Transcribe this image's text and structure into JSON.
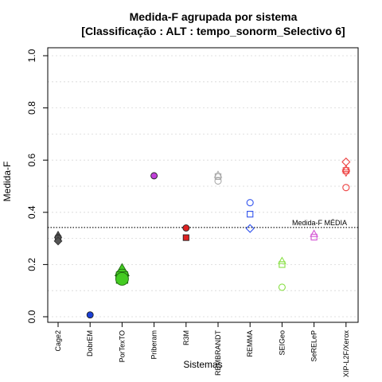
{
  "chart_data": {
    "type": "scatter",
    "title": "Medida-F agrupada por sistema",
    "subtitle": "[Classificação : ALT : tempo_sonorm_Selectivo 6]",
    "xlabel": "Sistemas",
    "ylabel": "Medida-F",
    "ylim": [
      0,
      1
    ],
    "yticks": [
      "0.0",
      "0.2",
      "0.4",
      "0.6",
      "0.8",
      "1.0"
    ],
    "grid": "horizontal-dotted",
    "categories": [
      "Cage2",
      "DobrEM",
      "PorTexTO",
      "Priberam",
      "R3M",
      "REMBRANDT",
      "REMMA",
      "SEIGeo",
      "SeRELeP",
      "XIP-L2F/Xerox"
    ],
    "reference_line": {
      "label": "Medida-F MÉDIA",
      "value": 0.342
    },
    "points": [
      {
        "category": "Cage2",
        "y": 0.313,
        "shape": "triangle",
        "color": "#555555",
        "fill": true,
        "size": 4
      },
      {
        "category": "Cage2",
        "y": 0.303,
        "shape": "circle",
        "color": "#555555",
        "fill": true,
        "size": 4
      },
      {
        "category": "Cage2",
        "y": 0.3,
        "shape": "square",
        "color": "#555555",
        "fill": true,
        "size": 4
      },
      {
        "category": "Cage2",
        "y": 0.29,
        "shape": "diamond",
        "color": "#555555",
        "fill": true,
        "size": 4
      },
      {
        "category": "DobrEM",
        "y": 0.007,
        "shape": "circle",
        "color": "#1a3fd6",
        "fill": true,
        "size": 4
      },
      {
        "category": "PorTexTO",
        "y": 0.175,
        "shape": "triangle",
        "color": "#44cc22",
        "fill": true,
        "size": 8
      },
      {
        "category": "PorTexTO",
        "y": 0.158,
        "shape": "circle",
        "color": "#44cc22",
        "fill": true,
        "size": 8
      },
      {
        "category": "PorTexTO",
        "y": 0.15,
        "shape": "square",
        "color": "#44cc22",
        "fill": true,
        "size": 8
      },
      {
        "category": "PorTexTO",
        "y": 0.145,
        "shape": "circle",
        "color": "#44cc22",
        "fill": true,
        "size": 8
      },
      {
        "category": "Priberam",
        "y": 0.54,
        "shape": "circle",
        "color": "#c040d8",
        "fill": true,
        "size": 4
      },
      {
        "category": "R3M",
        "y": 0.34,
        "shape": "circle",
        "color": "#dd2222",
        "fill": true,
        "size": 4
      },
      {
        "category": "R3M",
        "y": 0.303,
        "shape": "square",
        "color": "#dd2222",
        "fill": true,
        "size": 4
      },
      {
        "category": "REMBRANDT",
        "y": 0.543,
        "shape": "triangle",
        "color": "#aaaaaa",
        "fill": false,
        "size": 4
      },
      {
        "category": "REMBRANDT",
        "y": 0.537,
        "shape": "square",
        "color": "#aaaaaa",
        "fill": false,
        "size": 4
      },
      {
        "category": "REMBRANDT",
        "y": 0.52,
        "shape": "circle",
        "color": "#aaaaaa",
        "fill": false,
        "size": 4
      },
      {
        "category": "REMMA",
        "y": 0.437,
        "shape": "circle",
        "color": "#3355ee",
        "fill": false,
        "size": 4
      },
      {
        "category": "REMMA",
        "y": 0.393,
        "shape": "square",
        "color": "#3355ee",
        "fill": false,
        "size": 4
      },
      {
        "category": "REMMA",
        "y": 0.338,
        "shape": "diamond",
        "color": "#3355ee",
        "fill": false,
        "size": 4
      },
      {
        "category": "SEIGeo",
        "y": 0.213,
        "shape": "triangle",
        "color": "#88e044",
        "fill": false,
        "size": 4
      },
      {
        "category": "SEIGeo",
        "y": 0.2,
        "shape": "square",
        "color": "#88e044",
        "fill": false,
        "size": 4
      },
      {
        "category": "SEIGeo",
        "y": 0.113,
        "shape": "circle",
        "color": "#88e044",
        "fill": false,
        "size": 4
      },
      {
        "category": "SeRELeP",
        "y": 0.317,
        "shape": "triangle",
        "color": "#d455d4",
        "fill": false,
        "size": 4
      },
      {
        "category": "SeRELeP",
        "y": 0.305,
        "shape": "square",
        "color": "#d455d4",
        "fill": false,
        "size": 4
      },
      {
        "category": "XIP-L2F/Xerox",
        "y": 0.593,
        "shape": "diamond",
        "color": "#ee4444",
        "fill": false,
        "size": 4
      },
      {
        "category": "XIP-L2F/Xerox",
        "y": 0.565,
        "shape": "triangle",
        "color": "#ee4444",
        "fill": false,
        "size": 4
      },
      {
        "category": "XIP-L2F/Xerox",
        "y": 0.56,
        "shape": "square",
        "color": "#ee4444",
        "fill": false,
        "size": 4
      },
      {
        "category": "XIP-L2F/Xerox",
        "y": 0.553,
        "shape": "triangle-down",
        "color": "#ee4444",
        "fill": false,
        "size": 4
      },
      {
        "category": "XIP-L2F/Xerox",
        "y": 0.495,
        "shape": "circle",
        "color": "#ee4444",
        "fill": false,
        "size": 4
      }
    ]
  }
}
